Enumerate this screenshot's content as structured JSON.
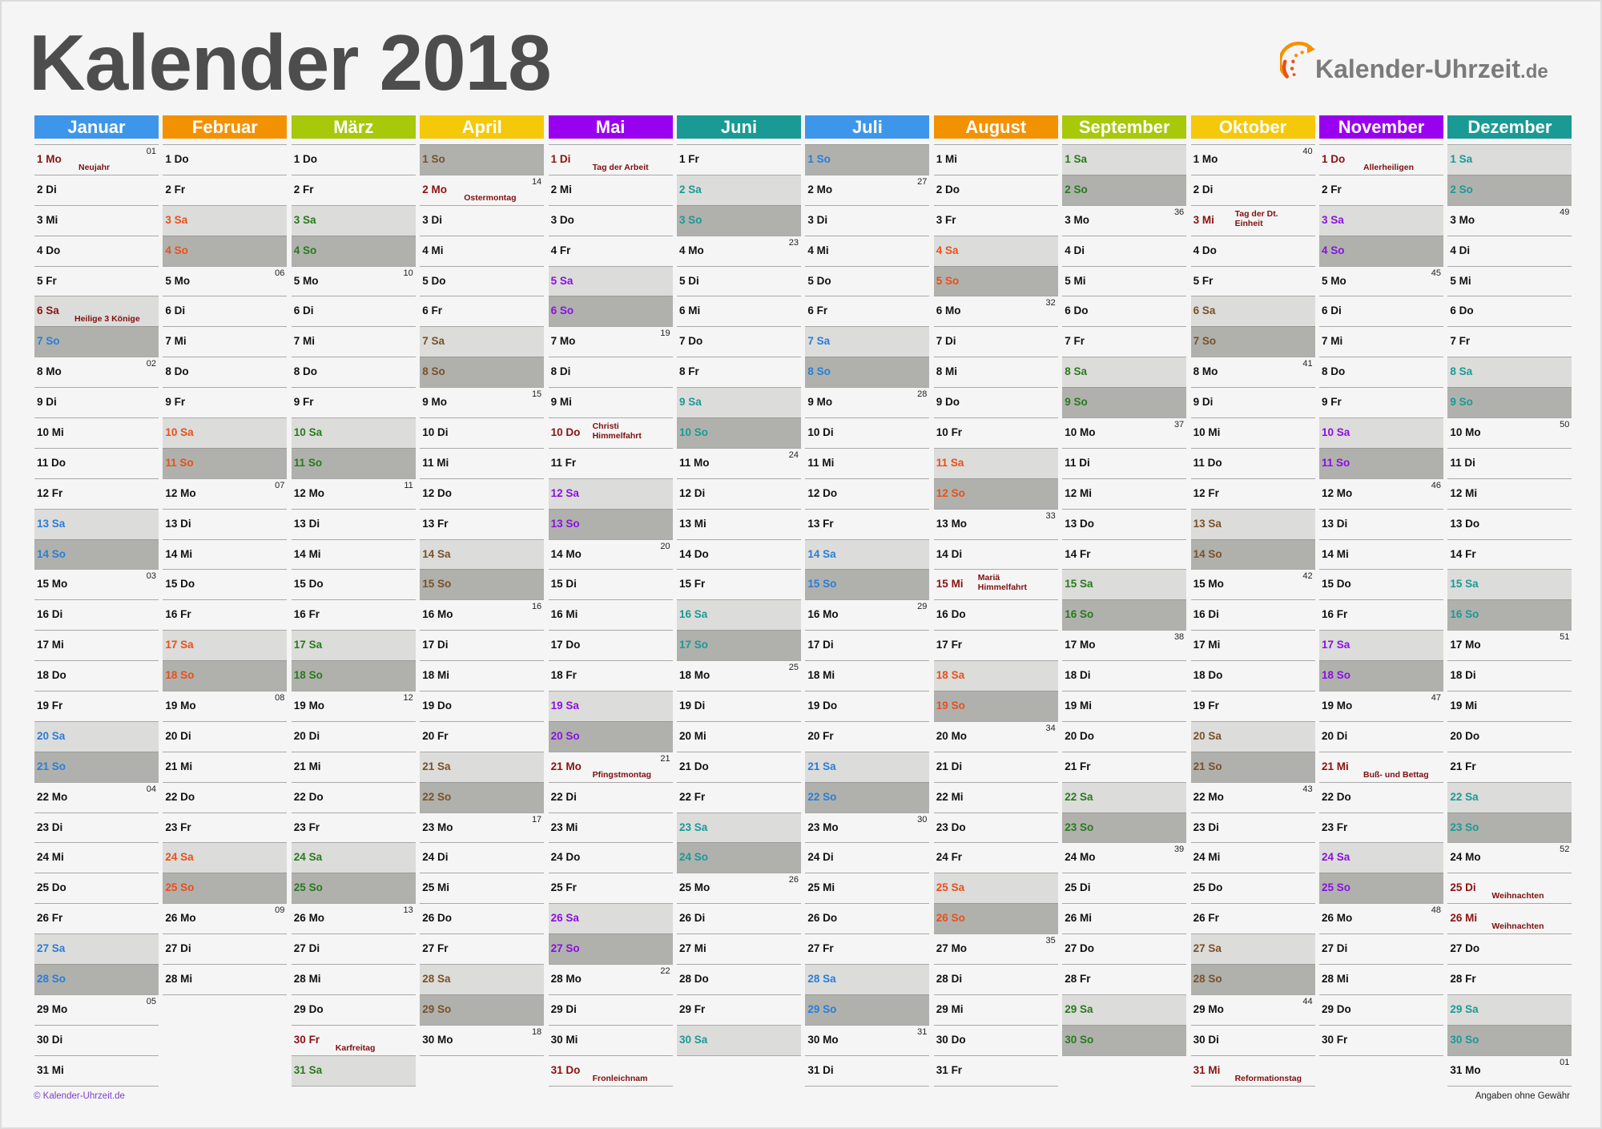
{
  "title": "Kalender 2018",
  "logo": {
    "name": "Kalender-Uhrzeit",
    "tld": ".de",
    "icon": "clock-arrow-logo-icon"
  },
  "colors": {
    "holiday": "#7d0f0f",
    "saturday_bg": "#dcdcda",
    "sunday_bg": "#b0b1ad"
  },
  "months": [
    {
      "name": "Januar",
      "color": "#3d96ea",
      "weekend_color": "#2a7dd8",
      "days": [
        "1 Mo",
        "2 Di",
        "3 Mi",
        "4 Do",
        "5 Fr",
        "6 Sa",
        "7 So",
        "8 Mo",
        "9 Di",
        "10 Mi",
        "11 Do",
        "12 Fr",
        "13 Sa",
        "14 So",
        "15 Mo",
        "16 Di",
        "17 Mi",
        "18 Do",
        "19 Fr",
        "20 Sa",
        "21 So",
        "22 Mo",
        "23 Di",
        "24 Mi",
        "25 Do",
        "26 Fr",
        "27 Sa",
        "28 So",
        "29 Mo",
        "30 Di",
        "31 Mi"
      ],
      "kw": {
        "1": "01",
        "8": "02",
        "15": "03",
        "22": "04",
        "29": "05"
      },
      "holidays": {
        "1": "Neujahr",
        "6": "Heilige 3 Könige"
      }
    },
    {
      "name": "Februar",
      "color": "#f39200",
      "weekend_color": "#e8501c",
      "days": [
        "1 Do",
        "2 Fr",
        "3 Sa",
        "4 So",
        "5 Mo",
        "6 Di",
        "7 Mi",
        "8 Do",
        "9 Fr",
        "10 Sa",
        "11 So",
        "12 Mo",
        "13 Di",
        "14 Mi",
        "15 Do",
        "16 Fr",
        "17 Sa",
        "18 So",
        "19 Mo",
        "20 Di",
        "21 Mi",
        "22 Do",
        "23 Fr",
        "24 Sa",
        "25 So",
        "26 Mo",
        "27 Di",
        "28 Mi"
      ],
      "kw": {
        "5": "06",
        "12": "07",
        "19": "08",
        "26": "09"
      },
      "holidays": {}
    },
    {
      "name": "März",
      "color": "#a8c80a",
      "weekend_color": "#287a1c",
      "days": [
        "1 Do",
        "2 Fr",
        "3 Sa",
        "4 So",
        "5 Mo",
        "6 Di",
        "7 Mi",
        "8 Do",
        "9 Fr",
        "10 Sa",
        "11 So",
        "12 Mo",
        "13 Di",
        "14 Mi",
        "15 Do",
        "16 Fr",
        "17 Sa",
        "18 So",
        "19 Mo",
        "20 Di",
        "21 Mi",
        "22 Do",
        "23 Fr",
        "24 Sa",
        "25 So",
        "26 Mo",
        "27 Di",
        "28 Mi",
        "29 Do",
        "30 Fr",
        "31 Sa"
      ],
      "kw": {
        "5": "10",
        "12": "11",
        "19": "12",
        "26": "13"
      },
      "holidays": {
        "30": "Karfreitag"
      }
    },
    {
      "name": "April",
      "color": "#f5c80a",
      "weekend_color": "#7a5126",
      "days": [
        "1 So",
        "2 Mo",
        "3 Di",
        "4 Mi",
        "5 Do",
        "6 Fr",
        "7 Sa",
        "8 So",
        "9 Mo",
        "10 Di",
        "11 Mi",
        "12 Do",
        "13 Fr",
        "14 Sa",
        "15 So",
        "16 Mo",
        "17 Di",
        "18 Mi",
        "19 Do",
        "20 Fr",
        "21 Sa",
        "22 So",
        "23 Mo",
        "24 Di",
        "25 Mi",
        "26 Do",
        "27 Fr",
        "28 Sa",
        "29 So",
        "30 Mo"
      ],
      "kw": {
        "2": "14",
        "9": "15",
        "16": "16",
        "23": "17",
        "30": "18"
      },
      "holidays": {
        "2": "Ostermontag"
      }
    },
    {
      "name": "Mai",
      "color": "#9a00f0",
      "weekend_color": "#8a10e0",
      "days": [
        "1 Di",
        "2 Mi",
        "3 Do",
        "4 Fr",
        "5 Sa",
        "6 So",
        "7 Mo",
        "8 Di",
        "9 Mi",
        "10 Do",
        "11 Fr",
        "12 Sa",
        "13 So",
        "14 Mo",
        "15 Di",
        "16 Mi",
        "17 Do",
        "18 Fr",
        "19 Sa",
        "20 So",
        "21 Mo",
        "22 Di",
        "23 Mi",
        "24 Do",
        "25 Fr",
        "26 Sa",
        "27 So",
        "28 Mo",
        "29 Di",
        "30 Mi",
        "31 Do"
      ],
      "kw": {
        "7": "19",
        "14": "20",
        "21": "21",
        "28": "22"
      },
      "holidays": {
        "1": "Tag der Arbeit",
        "10": "Christi Himmelfahrt",
        "21": "Pfingstmontag",
        "31": "Fronleichnam"
      }
    },
    {
      "name": "Juni",
      "color": "#1a9a94",
      "weekend_color": "#1a9a94",
      "days": [
        "1 Fr",
        "2 Sa",
        "3 So",
        "4 Mo",
        "5 Di",
        "6 Mi",
        "7 Do",
        "8 Fr",
        "9 Sa",
        "10 So",
        "11 Mo",
        "12 Di",
        "13 Mi",
        "14 Do",
        "15 Fr",
        "16 Sa",
        "17 So",
        "18 Mo",
        "19 Di",
        "20 Mi",
        "21 Do",
        "22 Fr",
        "23 Sa",
        "24 So",
        "25 Mo",
        "26 Di",
        "27 Mi",
        "28 Do",
        "29 Fr",
        "30 Sa"
      ],
      "kw": {
        "4": "23",
        "11": "24",
        "18": "25",
        "25": "26"
      },
      "holidays": {}
    },
    {
      "name": "Juli",
      "color": "#3d96ea",
      "weekend_color": "#2a7dd8",
      "days": [
        "1 So",
        "2 Mo",
        "3 Di",
        "4 Mi",
        "5 Do",
        "6 Fr",
        "7 Sa",
        "8 So",
        "9 Mo",
        "10 Di",
        "11 Mi",
        "12 Do",
        "13 Fr",
        "14 Sa",
        "15 So",
        "16 Mo",
        "17 Di",
        "18 Mi",
        "19 Do",
        "20 Fr",
        "21 Sa",
        "22 So",
        "23 Mo",
        "24 Di",
        "25 Mi",
        "26 Do",
        "27 Fr",
        "28 Sa",
        "29 So",
        "30 Mo",
        "31 Di"
      ],
      "kw": {
        "2": "27",
        "9": "28",
        "16": "29",
        "23": "30",
        "30": "31"
      },
      "holidays": {}
    },
    {
      "name": "August",
      "color": "#f39200",
      "weekend_color": "#e8501c",
      "days": [
        "1 Mi",
        "2 Do",
        "3 Fr",
        "4 Sa",
        "5 So",
        "6 Mo",
        "7 Di",
        "8 Mi",
        "9 Do",
        "10 Fr",
        "11 Sa",
        "12 So",
        "13 Mo",
        "14 Di",
        "15 Mi",
        "16 Do",
        "17 Fr",
        "18 Sa",
        "19 So",
        "20 Mo",
        "21 Di",
        "22 Mi",
        "23 Do",
        "24 Fr",
        "25 Sa",
        "26 So",
        "27 Mo",
        "28 Di",
        "29 Mi",
        "30 Do",
        "31 Fr"
      ],
      "kw": {
        "6": "32",
        "13": "33",
        "20": "34",
        "27": "35"
      },
      "holidays": {
        "15": "Mariä Himmelfahrt"
      }
    },
    {
      "name": "September",
      "color": "#a8c80a",
      "weekend_color": "#287a1c",
      "days": [
        "1 Sa",
        "2 So",
        "3 Mo",
        "4 Di",
        "5 Mi",
        "6 Do",
        "7 Fr",
        "8 Sa",
        "9 So",
        "10 Mo",
        "11 Di",
        "12 Mi",
        "13 Do",
        "14 Fr",
        "15 Sa",
        "16 So",
        "17 Mo",
        "18 Di",
        "19 Mi",
        "20 Do",
        "21 Fr",
        "22 Sa",
        "23 So",
        "24 Mo",
        "25 Di",
        "26 Mi",
        "27 Do",
        "28 Fr",
        "29 Sa",
        "30 So"
      ],
      "kw": {
        "3": "36",
        "10": "37",
        "17": "38",
        "24": "39"
      },
      "holidays": {}
    },
    {
      "name": "Oktober",
      "color": "#f5c80a",
      "weekend_color": "#7a5126",
      "days": [
        "1 Mo",
        "2 Di",
        "3 Mi",
        "4 Do",
        "5 Fr",
        "6 Sa",
        "7 So",
        "8 Mo",
        "9 Di",
        "10 Mi",
        "11 Do",
        "12 Fr",
        "13 Sa",
        "14 So",
        "15 Mo",
        "16 Di",
        "17 Mi",
        "18 Do",
        "19 Fr",
        "20 Sa",
        "21 So",
        "22 Mo",
        "23 Di",
        "24 Mi",
        "25 Do",
        "26 Fr",
        "27 Sa",
        "28 So",
        "29 Mo",
        "30 Di",
        "31 Mi"
      ],
      "kw": {
        "1": "40",
        "8": "41",
        "15": "42",
        "22": "43",
        "29": "44"
      },
      "holidays": {
        "3": "Tag der Dt. Einheit",
        "31": "Reformationstag"
      }
    },
    {
      "name": "November",
      "color": "#9a00f0",
      "weekend_color": "#8a10e0",
      "days": [
        "1 Do",
        "2 Fr",
        "3 Sa",
        "4 So",
        "5 Mo",
        "6 Di",
        "7 Mi",
        "8 Do",
        "9 Fr",
        "10 Sa",
        "11 So",
        "12 Mo",
        "13 Di",
        "14 Mi",
        "15 Do",
        "16 Fr",
        "17 Sa",
        "18 So",
        "19 Mo",
        "20 Di",
        "21 Mi",
        "22 Do",
        "23 Fr",
        "24 Sa",
        "25 So",
        "26 Mo",
        "27 Di",
        "28 Mi",
        "29 Do",
        "30 Fr"
      ],
      "kw": {
        "5": "45",
        "12": "46",
        "19": "47",
        "26": "48"
      },
      "holidays": {
        "1": "Allerheiligen",
        "21": "Buß- und Bettag"
      }
    },
    {
      "name": "Dezember",
      "color": "#1a9a94",
      "weekend_color": "#1a9a94",
      "days": [
        "1 Sa",
        "2 So",
        "3 Mo",
        "4 Di",
        "5 Mi",
        "6 Do",
        "7 Fr",
        "8 Sa",
        "9 So",
        "10 Mo",
        "11 Di",
        "12 Mi",
        "13 Do",
        "14 Fr",
        "15 Sa",
        "16 So",
        "17 Mo",
        "18 Di",
        "19 Mi",
        "20 Do",
        "21 Fr",
        "22 Sa",
        "23 So",
        "24 Mo",
        "25 Di",
        "26 Mi",
        "27 Do",
        "28 Fr",
        "29 Sa",
        "30 So",
        "31 Mo"
      ],
      "kw": {
        "3": "49",
        "10": "50",
        "17": "51",
        "24": "52",
        "31": "01"
      },
      "holidays": {
        "25": "Weihnachten",
        "26": "Weihnachten"
      }
    }
  ],
  "footer": {
    "copyright": "© Kalender-Uhrzeit.de",
    "disclaimer": "Angaben ohne Gewähr"
  }
}
